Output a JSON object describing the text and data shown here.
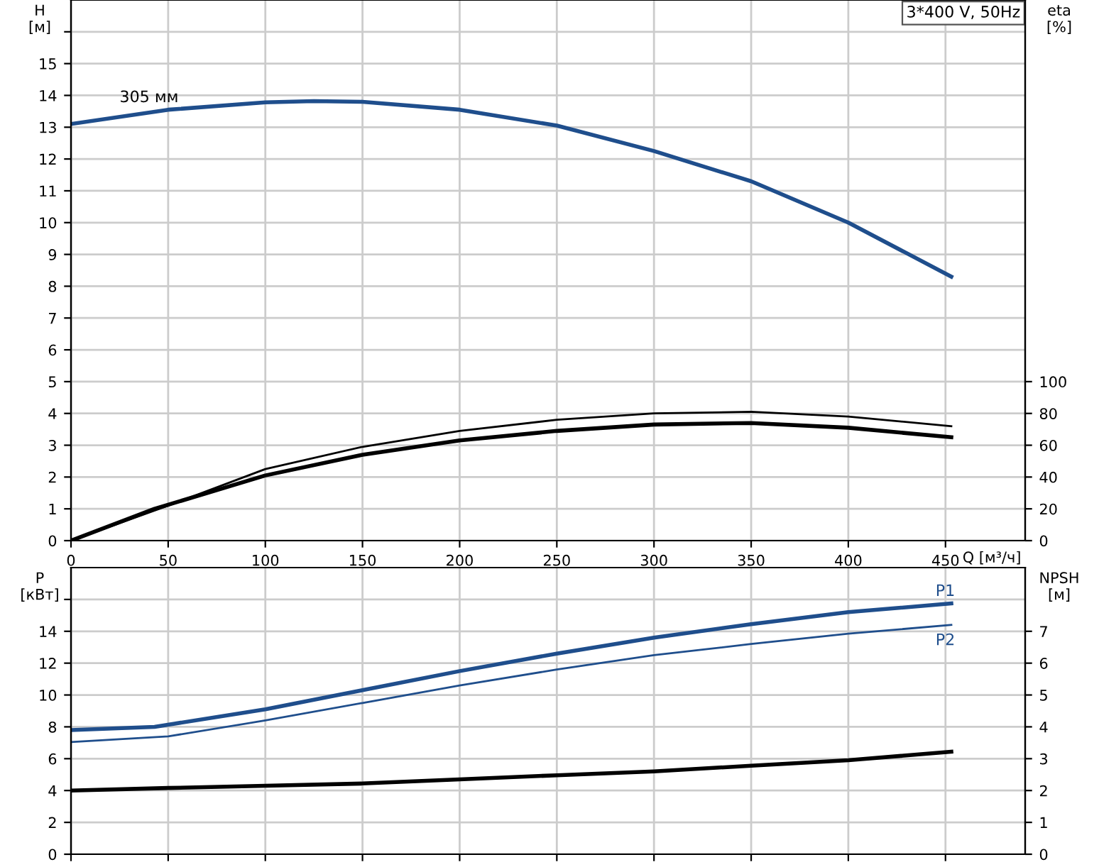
{
  "chart_data": [
    {
      "type": "line",
      "xlabel": "Q [м³/ч]",
      "ylabel": "H\n[м]",
      "y2label": "eta\n[%]",
      "xlim": [
        0,
        491
      ],
      "ylim": [
        0,
        17
      ],
      "y2lim": [
        0,
        340
      ],
      "xticks": [
        0,
        50,
        100,
        150,
        200,
        250,
        300,
        350,
        400,
        450
      ],
      "yticks": [
        0,
        1,
        2,
        3,
        4,
        5,
        6,
        7,
        8,
        9,
        10,
        11,
        12,
        13,
        14,
        15,
        {
          "value": 16,
          "label": null
        }
      ],
      "y2ticks": [
        0,
        20,
        40,
        60,
        80,
        100
      ],
      "grid": true,
      "legend": false,
      "marker": "none",
      "line_style": "solid",
      "annotations": [
        "3*400 V, 50Hz",
        {
          "text": "305 мм",
          "x": 25,
          "y": 13.5
        }
      ],
      "series": [
        {
          "color": "#1f4e8c",
          "x": [
            0,
            50,
            100,
            125,
            150,
            200,
            250,
            300,
            350,
            400,
            453
          ],
          "values": [
            13.1,
            13.55,
            13.78,
            13.82,
            13.8,
            13.55,
            13.05,
            12.25,
            11.3,
            10.0,
            8.3
          ]
        },
        {
          "color": "#000000",
          "axis": "y2",
          "x": [
            0,
            50,
            100,
            150,
            200,
            250,
            300,
            350,
            400,
            453
          ],
          "values": [
            0,
            22,
            45,
            59,
            69,
            76,
            80,
            81,
            78,
            72
          ]
        },
        {
          "color": "#000000",
          "axis": "y2",
          "x": [
            0,
            43,
            100,
            150,
            200,
            250,
            300,
            350,
            400,
            453
          ],
          "values": [
            0,
            20,
            41,
            54,
            63,
            69,
            73,
            74,
            71,
            65
          ]
        }
      ]
    },
    {
      "type": "line",
      "ylabel": "P\n[кВт]",
      "y2label": "NPSH\n[м]",
      "xlim": [
        0,
        491
      ],
      "ylim": [
        0,
        18
      ],
      "y2lim": [
        0,
        9
      ],
      "xticks": [
        0,
        50,
        100,
        150,
        200,
        250,
        300,
        350,
        400,
        450
      ],
      "tick_labels": "y",
      "yticks": [
        0,
        2,
        4,
        6,
        8,
        10,
        12,
        14,
        {
          "value": 16,
          "label": null
        }
      ],
      "y2ticks": [
        0,
        1,
        2,
        3,
        4,
        5,
        6,
        7
      ],
      "grid": true,
      "legend": false,
      "marker": "none",
      "line_style": "solid",
      "series": [
        {
          "name": "P1",
          "color": "#1f4e8c",
          "x": [
            0,
            43,
            100,
            150,
            200,
            250,
            300,
            350,
            400,
            453
          ],
          "values": [
            7.8,
            8.0,
            9.1,
            10.3,
            11.5,
            12.6,
            13.6,
            14.45,
            15.2,
            15.75
          ]
        },
        {
          "name": "P2",
          "color": "#1f4e8c",
          "x": [
            0,
            50,
            100,
            150,
            200,
            250,
            300,
            350,
            400,
            453
          ],
          "values": [
            7.05,
            7.4,
            8.4,
            9.5,
            10.6,
            11.6,
            12.5,
            13.2,
            13.85,
            14.4
          ]
        },
        {
          "color": "#000000",
          "axis": "y2",
          "x": [
            0,
            50,
            100,
            150,
            200,
            250,
            300,
            350,
            400,
            453
          ],
          "values": [
            2.0,
            2.08,
            2.15,
            2.22,
            2.35,
            2.48,
            2.6,
            2.78,
            2.95,
            3.22
          ]
        }
      ]
    }
  ]
}
